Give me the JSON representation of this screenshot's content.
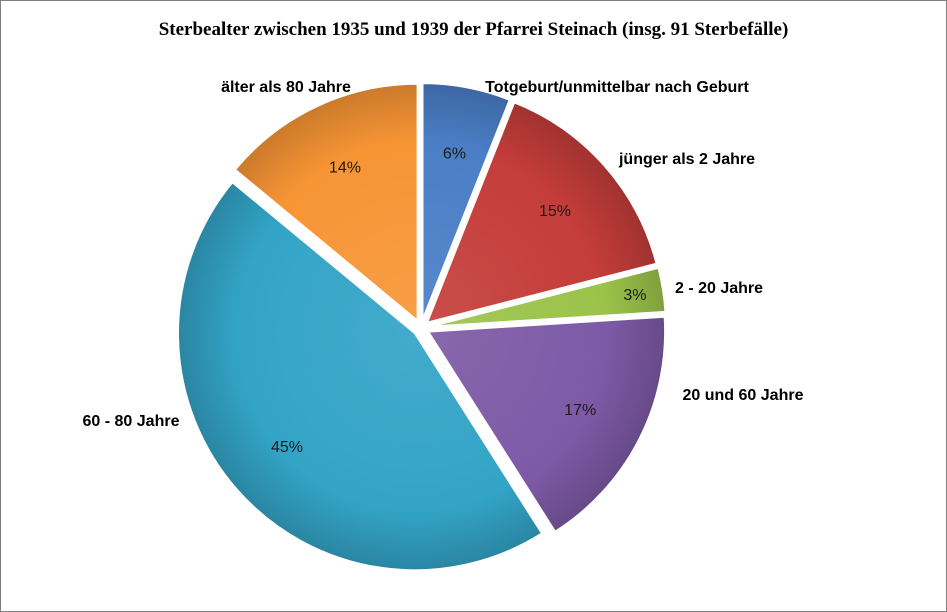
{
  "chart_data": {
    "type": "pie",
    "title": "Sterbealter zwischen 1935 und 1939 der Pfarrei Steinach (insg. 91 Sterbefälle)",
    "slices": [
      {
        "label": "Totgeburt/unmittelbar nach Geburt",
        "percent": 6,
        "value_label": "6%",
        "color": "#4a7ec6"
      },
      {
        "label": "jünger als 2 Jahre",
        "percent": 15,
        "value_label": "15%",
        "color": "#c43d3a"
      },
      {
        "label": "2 - 20 Jahre",
        "percent": 3,
        "value_label": "3%",
        "color": "#9bc34a"
      },
      {
        "label": "20 und 60 Jahre",
        "percent": 17,
        "value_label": "17%",
        "color": "#7e5aa6"
      },
      {
        "label": "60 - 80 Jahre",
        "percent": 45,
        "value_label": "45%",
        "color": "#33a4c6"
      },
      {
        "label": "älter als 80 Jahre",
        "percent": 14,
        "value_label": "14%",
        "color": "#f79535"
      }
    ],
    "legend": "none",
    "exploded": true
  }
}
